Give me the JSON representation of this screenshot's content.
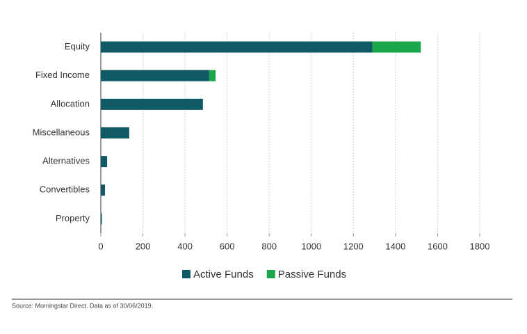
{
  "chart_data": {
    "type": "stacked-barh",
    "categories": [
      "Equity",
      "Fixed Income",
      "Allocation",
      "Miscellaneous",
      "Alternatives",
      "Convertibles",
      "Property"
    ],
    "series": [
      {
        "name": "Active Funds",
        "color": "#0f5a64",
        "values": [
          1290,
          515,
          485,
          135,
          30,
          20,
          5
        ]
      },
      {
        "name": "Passive Funds",
        "color": "#1aa64a",
        "values": [
          230,
          30,
          0,
          0,
          0,
          0,
          0
        ]
      }
    ],
    "xlim": [
      0,
      1800
    ],
    "xticks": [
      0,
      200,
      400,
      600,
      800,
      1000,
      1200,
      1400,
      1600,
      1800
    ],
    "grid": true,
    "legend": "bottom",
    "source": "Source: Morningstar Direct. Data as of 30/06/2019."
  }
}
